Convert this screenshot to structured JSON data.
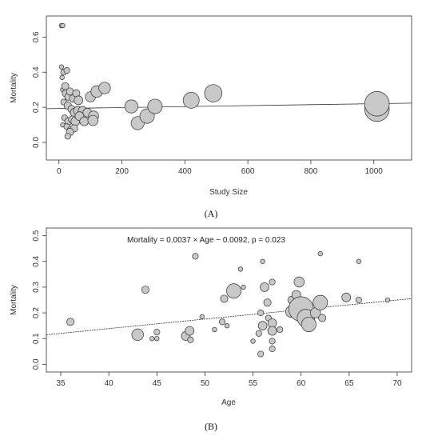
{
  "chart_data": [
    {
      "type": "scatter",
      "panel_label": "(A)",
      "xlabel": "Study Size",
      "ylabel": "Mortality",
      "xlim": [
        -40,
        1120
      ],
      "ylim": [
        -0.1,
        0.72
      ],
      "xticks": [
        "0",
        "200",
        "400",
        "600",
        "800",
        "1000"
      ],
      "yticks": [
        "0.0",
        "0.2",
        "0.4",
        "0.6"
      ],
      "grid": false,
      "fit_line": {
        "x": [
          -40,
          1120
        ],
        "y": [
          0.192,
          0.224
        ]
      },
      "points": [
        {
          "x": 8,
          "y": 0.665,
          "s": 1
        },
        {
          "x": 12,
          "y": 0.665,
          "s": 1
        },
        {
          "x": 8,
          "y": 0.43,
          "s": 1
        },
        {
          "x": 15,
          "y": 0.4,
          "s": 1.5
        },
        {
          "x": 25,
          "y": 0.41,
          "s": 1.5
        },
        {
          "x": 10,
          "y": 0.37,
          "s": 1
        },
        {
          "x": 12,
          "y": 0.3,
          "s": 1
        },
        {
          "x": 20,
          "y": 0.32,
          "s": 2
        },
        {
          "x": 22,
          "y": 0.28,
          "s": 2
        },
        {
          "x": 30,
          "y": 0.26,
          "s": 2
        },
        {
          "x": 35,
          "y": 0.29,
          "s": 2
        },
        {
          "x": 45,
          "y": 0.25,
          "s": 2
        },
        {
          "x": 55,
          "y": 0.28,
          "s": 2
        },
        {
          "x": 62,
          "y": 0.24,
          "s": 2.5
        },
        {
          "x": 15,
          "y": 0.23,
          "s": 1.5
        },
        {
          "x": 28,
          "y": 0.21,
          "s": 2
        },
        {
          "x": 40,
          "y": 0.19,
          "s": 2
        },
        {
          "x": 50,
          "y": 0.17,
          "s": 2.5
        },
        {
          "x": 60,
          "y": 0.18,
          "s": 2.5
        },
        {
          "x": 75,
          "y": 0.18,
          "s": 2.5
        },
        {
          "x": 90,
          "y": 0.17,
          "s": 2.5
        },
        {
          "x": 18,
          "y": 0.14,
          "s": 1.5
        },
        {
          "x": 30,
          "y": 0.12,
          "s": 2
        },
        {
          "x": 42,
          "y": 0.13,
          "s": 2
        },
        {
          "x": 52,
          "y": 0.12,
          "s": 2.5
        },
        {
          "x": 65,
          "y": 0.15,
          "s": 2.5
        },
        {
          "x": 80,
          "y": 0.12,
          "s": 2.5
        },
        {
          "x": 12,
          "y": 0.1,
          "s": 1
        },
        {
          "x": 25,
          "y": 0.09,
          "s": 1.5
        },
        {
          "x": 38,
          "y": 0.07,
          "s": 2
        },
        {
          "x": 48,
          "y": 0.08,
          "s": 2
        },
        {
          "x": 35,
          "y": 0.06,
          "s": 2
        },
        {
          "x": 28,
          "y": 0.035,
          "s": 1.5
        },
        {
          "x": 100,
          "y": 0.26,
          "s": 3
        },
        {
          "x": 120,
          "y": 0.29,
          "s": 3.5
        },
        {
          "x": 145,
          "y": 0.31,
          "s": 3.5
        },
        {
          "x": 110,
          "y": 0.15,
          "s": 3
        },
        {
          "x": 108,
          "y": 0.125,
          "s": 3
        },
        {
          "x": 230,
          "y": 0.205,
          "s": 4
        },
        {
          "x": 250,
          "y": 0.11,
          "s": 4
        },
        {
          "x": 280,
          "y": 0.15,
          "s": 4.5
        },
        {
          "x": 305,
          "y": 0.205,
          "s": 4.5
        },
        {
          "x": 420,
          "y": 0.24,
          "s": 5
        },
        {
          "x": 490,
          "y": 0.28,
          "s": 5.5
        },
        {
          "x": 1010,
          "y": 0.19,
          "s": 8
        },
        {
          "x": 1010,
          "y": 0.22,
          "s": 8
        }
      ]
    },
    {
      "type": "scatter",
      "panel_label": "(B)",
      "xlabel": "Age",
      "ylabel": "Mortality",
      "annotation": "Mortality = 0.0037 × Age − 0.0092, p = 0.023",
      "xlim": [
        33.5,
        71.5
      ],
      "ylim": [
        -0.03,
        0.53
      ],
      "xticks": [
        "35",
        "40",
        "45",
        "50",
        "55",
        "60",
        "65",
        "70"
      ],
      "yticks": [
        "0.0",
        "0.1",
        "0.2",
        "0.3",
        "0.4",
        "0.5"
      ],
      "grid": false,
      "fit_line": {
        "x": [
          33.5,
          71.5
        ],
        "y": [
          0.1148,
          0.2554
        ]
      },
      "points": [
        {
          "x": 36,
          "y": 0.165,
          "s": 2
        },
        {
          "x": 43,
          "y": 0.115,
          "s": 3.5
        },
        {
          "x": 43.8,
          "y": 0.29,
          "s": 2
        },
        {
          "x": 44.5,
          "y": 0.1,
          "s": 1
        },
        {
          "x": 45,
          "y": 0.125,
          "s": 1.5
        },
        {
          "x": 45,
          "y": 0.1,
          "s": 1
        },
        {
          "x": 48,
          "y": 0.11,
          "s": 2.5
        },
        {
          "x": 48.4,
          "y": 0.13,
          "s": 2.5
        },
        {
          "x": 48.5,
          "y": 0.095,
          "s": 1.5
        },
        {
          "x": 49,
          "y": 0.42,
          "s": 1.5
        },
        {
          "x": 49.7,
          "y": 0.185,
          "s": 1
        },
        {
          "x": 51,
          "y": 0.135,
          "s": 1
        },
        {
          "x": 51.8,
          "y": 0.165,
          "s": 1.5
        },
        {
          "x": 52,
          "y": 0.255,
          "s": 2
        },
        {
          "x": 52.3,
          "y": 0.15,
          "s": 1
        },
        {
          "x": 53,
          "y": 0.285,
          "s": 4.5
        },
        {
          "x": 53.7,
          "y": 0.37,
          "s": 1
        },
        {
          "x": 54,
          "y": 0.3,
          "s": 1
        },
        {
          "x": 55,
          "y": 0.09,
          "s": 1
        },
        {
          "x": 55.6,
          "y": 0.12,
          "s": 1.5
        },
        {
          "x": 55.8,
          "y": 0.04,
          "s": 1.5
        },
        {
          "x": 55.8,
          "y": 0.2,
          "s": 1.5
        },
        {
          "x": 56,
          "y": 0.15,
          "s": 2.5
        },
        {
          "x": 56,
          "y": 0.4,
          "s": 1
        },
        {
          "x": 56.2,
          "y": 0.3,
          "s": 2.5
        },
        {
          "x": 56.5,
          "y": 0.24,
          "s": 2
        },
        {
          "x": 56.6,
          "y": 0.18,
          "s": 1.5
        },
        {
          "x": 57,
          "y": 0.32,
          "s": 1.5
        },
        {
          "x": 57,
          "y": 0.16,
          "s": 2.5
        },
        {
          "x": 57,
          "y": 0.13,
          "s": 2.5
        },
        {
          "x": 57,
          "y": 0.09,
          "s": 1.5
        },
        {
          "x": 57,
          "y": 0.06,
          "s": 1.5
        },
        {
          "x": 57.8,
          "y": 0.135,
          "s": 1.5
        },
        {
          "x": 59,
          "y": 0.25,
          "s": 2
        },
        {
          "x": 59,
          "y": 0.205,
          "s": 3.5
        },
        {
          "x": 59.5,
          "y": 0.27,
          "s": 2.5
        },
        {
          "x": 59.8,
          "y": 0.32,
          "s": 3
        },
        {
          "x": 60,
          "y": 0.215,
          "s": 8
        },
        {
          "x": 60.5,
          "y": 0.18,
          "s": 5.5
        },
        {
          "x": 60.8,
          "y": 0.155,
          "s": 4.5
        },
        {
          "x": 61.5,
          "y": 0.2,
          "s": 3
        },
        {
          "x": 62,
          "y": 0.24,
          "s": 4.5
        },
        {
          "x": 62,
          "y": 0.43,
          "s": 1
        },
        {
          "x": 62.2,
          "y": 0.18,
          "s": 2
        },
        {
          "x": 64.7,
          "y": 0.26,
          "s": 2.5
        },
        {
          "x": 66,
          "y": 0.4,
          "s": 1
        },
        {
          "x": 66,
          "y": 0.25,
          "s": 1.5
        },
        {
          "x": 69,
          "y": 0.25,
          "s": 1
        }
      ]
    }
  ]
}
